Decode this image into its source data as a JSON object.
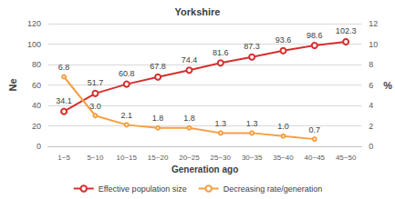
{
  "chart_data": {
    "type": "line",
    "title": "Yorkshire",
    "categories": [
      "1~5",
      "5~10",
      "10~15",
      "15~20",
      "20~25",
      "25~30",
      "30~35",
      "35~40",
      "40~45",
      "45~50"
    ],
    "x_label": "Generation ago",
    "y_label": "Ne",
    "y2_label": "%",
    "ylim": [
      0,
      120
    ],
    "yticks": [
      0,
      20,
      40,
      60,
      80,
      100,
      120
    ],
    "y2lim": [
      0,
      12
    ],
    "y2ticks": [
      0,
      2,
      4,
      6,
      8,
      10,
      12
    ],
    "grid": true,
    "legend": "bottom",
    "data_labels": true,
    "series": [
      {
        "name": "Effective population size",
        "color": "#d62f2f",
        "marker": "circle",
        "line_style": "solid",
        "values": [
          34.1,
          51.7,
          60.8,
          67.8,
          74.4,
          81.6,
          87.3,
          93.6,
          98.6,
          102.3
        ]
      },
      {
        "name": "Decreasing rate/generation",
        "color": "#f4a041",
        "marker": "circle",
        "line_style": "solid",
        "axis": "y2",
        "values": [
          6.8,
          3.0,
          2.1,
          1.8,
          1.8,
          1.3,
          1.3,
          1.0,
          0.7,
          null
        ],
        "value_labels": [
          "6.8",
          "3.0",
          "2.1",
          "1.8",
          "1.8",
          "1.3",
          "1.3",
          "1.0",
          "0.7",
          null
        ]
      }
    ]
  }
}
